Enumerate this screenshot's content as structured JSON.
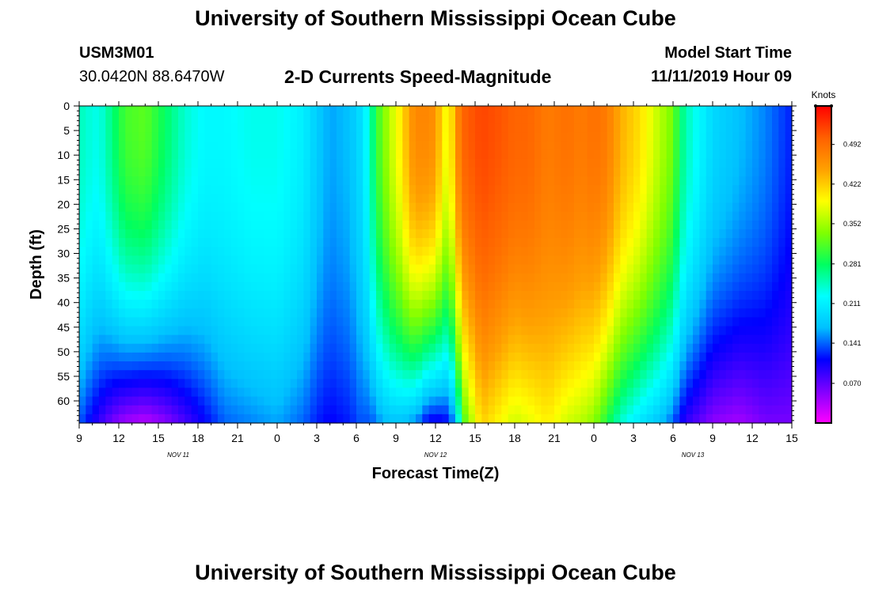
{
  "header": {
    "title": "University of Southern Mississippi Ocean Cube",
    "station_id": "USM3M01",
    "station_coords": "30.0420N 88.6470W",
    "chart_subtitle": "2-D Currents Speed-Magnitude",
    "model_label": "Model Start Time",
    "model_time": "11/11/2019 Hour 09"
  },
  "footer": {
    "title": "University of Southern Mississippi Ocean Cube"
  },
  "chart_data": {
    "type": "heatmap",
    "title": "2-D Currents Speed-Magnitude",
    "xlabel": "Forecast Time(Z)",
    "ylabel": "Depth (ft)",
    "x_tick_labels": [
      "9",
      "12",
      "15",
      "18",
      "21",
      "0",
      "3",
      "6",
      "9",
      "12",
      "15",
      "18",
      "21",
      "0",
      "3",
      "6",
      "9",
      "12",
      "15"
    ],
    "x_hours_range": [
      0,
      54
    ],
    "date_labels": [
      {
        "label": "NOV 11",
        "hour": 7.5
      },
      {
        "label": "NOV 12",
        "hour": 27
      },
      {
        "label": "NOV 13",
        "hour": 46.5
      }
    ],
    "y_tick_labels": [
      "0",
      "5",
      "10",
      "15",
      "20",
      "25",
      "30",
      "35",
      "40",
      "45",
      "50",
      "55",
      "60"
    ],
    "ylim": [
      0,
      64.5
    ],
    "y_inverted": true,
    "colorbar": {
      "title": "Knots",
      "tick_labels": [
        "0.070",
        "0.141",
        "0.211",
        "0.281",
        "0.352",
        "0.422",
        "0.492"
      ],
      "range": [
        0.0,
        0.56
      ],
      "colors": [
        "#ff00ff",
        "#8000ff",
        "#0000ff",
        "#00c0ff",
        "#00ffff",
        "#00ff60",
        "#80ff00",
        "#ffff00",
        "#ffa000",
        "#ff6000",
        "#ff0000"
      ]
    },
    "speed_profile_knots": {
      "hours": [
        0,
        0.5,
        1.5,
        2.5,
        3.5,
        5,
        6.5,
        8,
        9.5,
        11,
        13,
        15,
        17,
        18,
        19,
        20.5,
        21.5,
        22,
        22.5,
        23.5,
        24.5,
        25,
        25.5,
        26,
        26.5,
        27,
        27.5,
        28,
        28.5,
        29,
        30.5,
        32,
        33,
        34,
        35.5,
        37,
        38,
        39,
        40,
        41,
        42.5,
        44,
        45,
        45.5,
        46,
        47,
        48,
        50,
        52,
        54
      ],
      "surface": [
        0.25,
        0.24,
        0.23,
        0.27,
        0.31,
        0.32,
        0.28,
        0.24,
        0.22,
        0.22,
        0.23,
        0.23,
        0.21,
        0.18,
        0.16,
        0.17,
        0.2,
        0.24,
        0.3,
        0.36,
        0.41,
        0.45,
        0.47,
        0.47,
        0.47,
        0.46,
        0.41,
        0.38,
        0.45,
        0.5,
        0.52,
        0.51,
        0.5,
        0.5,
        0.48,
        0.49,
        0.48,
        0.49,
        0.48,
        0.44,
        0.41,
        0.36,
        0.33,
        0.28,
        0.25,
        0.22,
        0.19,
        0.17,
        0.15,
        0.12
      ],
      "bottom": [
        0.14,
        0.12,
        0.09,
        0.06,
        0.04,
        0.03,
        0.05,
        0.08,
        0.11,
        0.14,
        0.15,
        0.16,
        0.14,
        0.12,
        0.11,
        0.12,
        0.14,
        0.13,
        0.15,
        0.17,
        0.17,
        0.16,
        0.15,
        0.13,
        0.1,
        0.11,
        0.1,
        0.12,
        0.16,
        0.3,
        0.42,
        0.39,
        0.37,
        0.38,
        0.4,
        0.37,
        0.36,
        0.34,
        0.29,
        0.24,
        0.2,
        0.17,
        0.14,
        0.11,
        0.09,
        0.07,
        0.05,
        0.04,
        0.06,
        0.06
      ]
    }
  }
}
